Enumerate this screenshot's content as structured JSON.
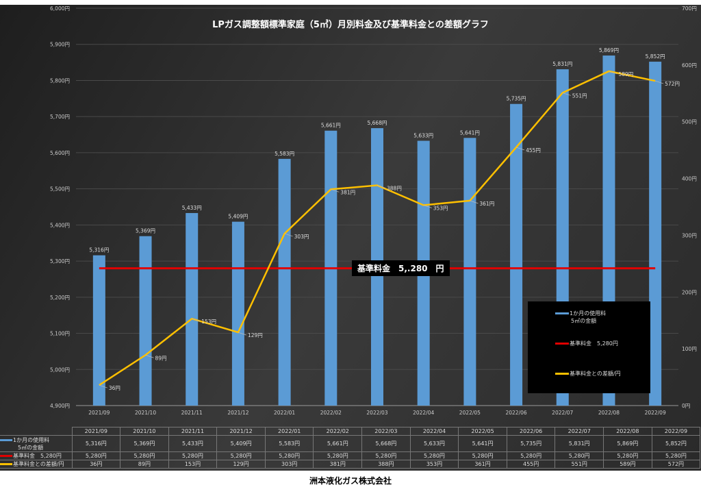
{
  "chart_data": {
    "type": "bar+line",
    "title": "LPガス調整額標準家庭（5㎥）月別料金及び基準料金との差額グラフ",
    "categories": [
      "2021/09",
      "2021/10",
      "2021/11",
      "2021/12",
      "2022/01",
      "2022/02",
      "2022/03",
      "2022/04",
      "2022/05",
      "2022/06",
      "2022/07",
      "2022/08",
      "2022/09"
    ],
    "series": [
      {
        "name": "1か月の使用料 5㎥の金額",
        "type": "bar",
        "axis": "left",
        "color": "#5b9bd5",
        "values": [
          5316,
          5369,
          5433,
          5409,
          5583,
          5661,
          5668,
          5633,
          5641,
          5735,
          5831,
          5869,
          5852
        ],
        "labels": [
          "5,316円",
          "5,369円",
          "5,433円",
          "5,409円",
          "5,583円",
          "5,661円",
          "5,668円",
          "5,633円",
          "5,641円",
          "5,735円",
          "5,831円",
          "5,869円",
          "5,852円"
        ]
      },
      {
        "name": "基準料金 5,280円",
        "type": "line",
        "axis": "left",
        "color": "#e00000",
        "values": [
          5280,
          5280,
          5280,
          5280,
          5280,
          5280,
          5280,
          5280,
          5280,
          5280,
          5280,
          5280,
          5280
        ],
        "labels": [
          "5,280円",
          "5,280円",
          "5,280円",
          "5,280円",
          "5,280円",
          "5,280円",
          "5,280円",
          "5,280円",
          "5,280円",
          "5,280円",
          "5,280円",
          "5,280円",
          "5,280円"
        ]
      },
      {
        "name": "基準料金との差額/円",
        "type": "line",
        "axis": "right",
        "color": "#ffc000",
        "values": [
          36,
          89,
          153,
          129,
          303,
          381,
          388,
          353,
          361,
          455,
          551,
          589,
          572
        ],
        "labels": [
          "36円",
          "89円",
          "153円",
          "129円",
          "303円",
          "381円",
          "388円",
          "353円",
          "361円",
          "455円",
          "551円",
          "589円",
          "572円"
        ]
      }
    ],
    "left_axis": {
      "range": [
        4900,
        6000
      ],
      "ticks": [
        "4,900円",
        "5,000円",
        "5,100円",
        "5,200円",
        "5,300円",
        "5,400円",
        "5,500円",
        "5,600円",
        "5,700円",
        "5,800円",
        "5,900円",
        "6,000円"
      ]
    },
    "right_axis": {
      "range": [
        0,
        700
      ],
      "ticks": [
        "0円",
        "100円",
        "200円",
        "300円",
        "400円",
        "500円",
        "600円",
        "700円"
      ]
    },
    "annotation": "基準料金　5,.280　円",
    "grid": true,
    "legend_position": "bottom-right",
    "legend": [
      "1か月の使用料",
      "5㎥の金額",
      "基準料金　5,280円",
      "基準料金との差額/円"
    ],
    "data_table": true
  },
  "footer": "洲本液化ガス株式会社"
}
